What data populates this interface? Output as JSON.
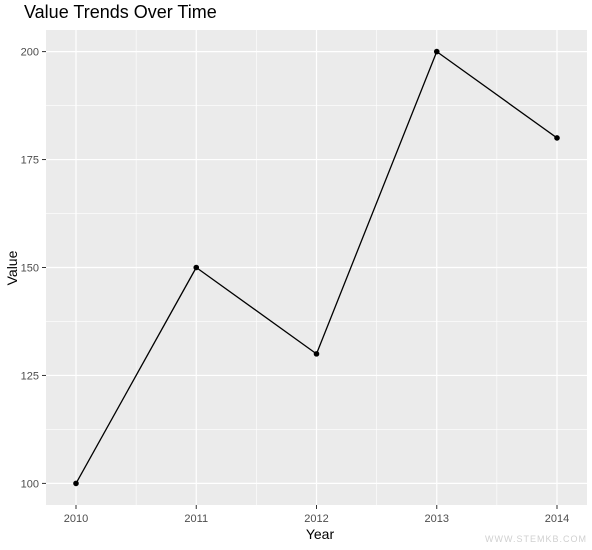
{
  "chart_data": {
    "type": "line",
    "title": "Value Trends Over Time",
    "xlabel": "Year",
    "ylabel": "Value",
    "x": [
      "2010",
      "2011",
      "2012",
      "2013",
      "2014"
    ],
    "series": [
      {
        "values": [
          100,
          150,
          130,
          200,
          180
        ]
      }
    ],
    "ylim": [
      95,
      205
    ],
    "yticks": [
      100,
      125,
      150,
      175,
      200
    ],
    "grid": true,
    "legend": "none",
    "colors": {
      "panel_background": "#ebebeb",
      "grid": "#ffffff",
      "line": "#000000",
      "point": "#000000",
      "tick_text": "#4d4d4d"
    },
    "watermark": "WWW.STEMKB.COM"
  }
}
